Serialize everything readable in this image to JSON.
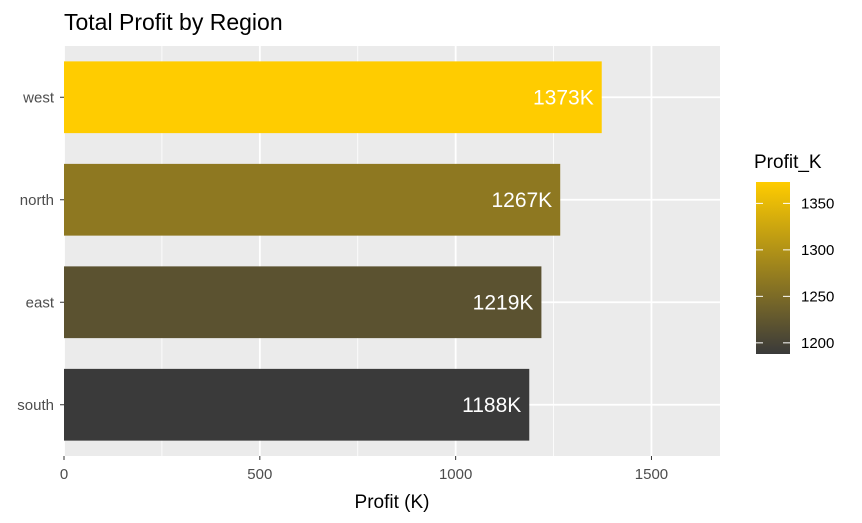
{
  "chart_data": {
    "type": "bar",
    "orientation": "horizontal",
    "title": "Total Profit by Region",
    "xlabel": "Profit (K)",
    "ylabel": "",
    "categories": [
      "west",
      "north",
      "east",
      "south"
    ],
    "values": [
      1373,
      1267,
      1219,
      1188
    ],
    "data_labels": [
      "1373K",
      "1267K",
      "1219K",
      "1188K"
    ],
    "xlim": [
      0,
      1675
    ],
    "x_ticks": [
      0,
      500,
      1000,
      1500
    ],
    "grid": true,
    "legend": {
      "title": "Profit_K",
      "placement": "right",
      "range": [
        1188,
        1373
      ],
      "ticks": [
        1200,
        1250,
        1300,
        1350
      ],
      "gradient_low": "#3a3a3a",
      "gradient_high": "#ffcc00"
    },
    "colors": {
      "panel_background": "#ebebeb",
      "grid": "#ffffff"
    }
  }
}
